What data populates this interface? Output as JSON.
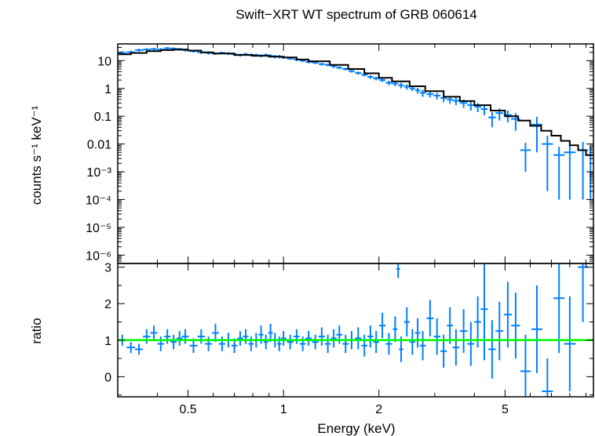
{
  "chart_data": {
    "type": "scatter",
    "title": "Swift−XRT WT spectrum of GRB 060614",
    "xlabel": "Energy (keV)",
    "xscale": "log",
    "xlim": [
      0.3,
      9.5
    ],
    "xticks": [
      {
        "value": 0.5,
        "label": "0.5"
      },
      {
        "value": 1,
        "label": "1"
      },
      {
        "value": 2,
        "label": "2"
      },
      {
        "value": 5,
        "label": "5"
      }
    ],
    "panels": [
      {
        "name": "spectrum",
        "ylabel": "counts s⁻¹ keV⁻¹",
        "yscale": "log",
        "ylim": [
          5e-07,
          40
        ],
        "yticks": [
          {
            "value": 10,
            "label": "10"
          },
          {
            "value": 1,
            "label": "1"
          },
          {
            "value": 0.1,
            "label": "0.1"
          },
          {
            "value": 0.01,
            "label": "0.01"
          },
          {
            "value": 0.001,
            "label": "10⁻³"
          },
          {
            "value": 0.0001,
            "label": "10⁻⁴"
          },
          {
            "value": 1e-05,
            "label": "10⁻⁵"
          },
          {
            "value": 1e-06,
            "label": "10⁻⁶"
          }
        ],
        "data": [
          [
            0.31,
            19,
            3
          ],
          [
            0.33,
            20,
            3
          ],
          [
            0.35,
            24,
            3
          ],
          [
            0.37,
            25,
            3
          ],
          [
            0.39,
            26,
            3
          ],
          [
            0.41,
            25,
            3
          ],
          [
            0.43,
            28,
            3
          ],
          [
            0.45,
            27,
            3
          ],
          [
            0.47,
            26,
            3
          ],
          [
            0.49,
            24,
            3
          ],
          [
            0.52,
            22,
            2.5
          ],
          [
            0.55,
            20,
            2.5
          ],
          [
            0.58,
            19,
            2.5
          ],
          [
            0.61,
            18,
            2
          ],
          [
            0.64,
            19,
            2
          ],
          [
            0.67,
            18,
            2
          ],
          [
            0.7,
            17,
            2
          ],
          [
            0.73,
            16,
            2
          ],
          [
            0.76,
            17,
            2
          ],
          [
            0.79,
            16,
            2
          ],
          [
            0.82,
            16,
            2
          ],
          [
            0.85,
            15,
            2
          ],
          [
            0.88,
            16,
            2
          ],
          [
            0.91,
            15,
            2
          ],
          [
            0.94,
            14,
            2
          ],
          [
            0.97,
            14,
            2
          ],
          [
            1.0,
            13,
            1.5
          ],
          [
            1.05,
            12,
            1.5
          ],
          [
            1.1,
            11,
            1.3
          ],
          [
            1.15,
            10,
            1.2
          ],
          [
            1.2,
            9,
            1.1
          ],
          [
            1.26,
            8.5,
            1
          ],
          [
            1.32,
            7.5,
            0.9
          ],
          [
            1.38,
            7,
            0.8
          ],
          [
            1.44,
            6.2,
            0.7
          ],
          [
            1.5,
            5.6,
            0.7
          ],
          [
            1.57,
            5,
            0.6
          ],
          [
            1.64,
            4.2,
            0.5
          ],
          [
            1.72,
            3.6,
            0.5
          ],
          [
            1.8,
            3.1,
            0.4
          ],
          [
            1.88,
            2.6,
            0.4
          ],
          [
            1.96,
            2.3,
            0.35
          ],
          [
            2.05,
            2.0,
            0.3
          ],
          [
            2.15,
            1.6,
            0.3
          ],
          [
            2.25,
            1.5,
            0.3
          ],
          [
            2.35,
            1.3,
            0.3
          ],
          [
            2.45,
            1.15,
            0.25
          ],
          [
            2.55,
            1.0,
            0.2
          ],
          [
            2.65,
            0.85,
            0.2
          ],
          [
            2.75,
            0.7,
            0.2
          ],
          [
            2.9,
            0.62,
            0.15
          ],
          [
            3.05,
            0.55,
            0.15
          ],
          [
            3.2,
            0.45,
            0.13
          ],
          [
            3.35,
            0.4,
            0.12
          ],
          [
            3.5,
            0.36,
            0.11
          ],
          [
            3.7,
            0.3,
            0.1
          ],
          [
            3.9,
            0.25,
            0.09
          ],
          [
            4.1,
            0.22,
            0.08
          ],
          [
            4.3,
            0.18,
            0.07
          ],
          [
            4.55,
            0.09,
            0.05
          ],
          [
            4.8,
            0.13,
            0.06
          ],
          [
            5.1,
            0.11,
            0.05
          ],
          [
            5.4,
            0.08,
            0.05
          ],
          [
            5.8,
            0.006,
            0.005
          ],
          [
            6.3,
            0.05,
            0.045
          ],
          [
            6.8,
            0.01,
            0.0098
          ],
          [
            7.4,
            0.004,
            0.0039
          ],
          [
            8.0,
            0.005,
            0.0049
          ],
          [
            8.8,
            0.006,
            0.0059
          ],
          [
            9.3,
            0.004,
            0.0039
          ]
        ],
        "model": {
          "name": "model",
          "color": "#000000",
          "x": [
            0.3,
            0.33,
            0.37,
            0.41,
            0.45,
            0.5,
            0.55,
            0.6,
            0.7,
            0.8,
            0.9,
            1.0,
            1.1,
            1.2,
            1.4,
            1.6,
            1.8,
            2.0,
            2.2,
            2.5,
            2.8,
            3.2,
            3.6,
            4.0,
            4.5,
            5.0,
            5.5,
            6.0,
            6.5,
            7.0,
            7.5,
            8.0,
            8.5,
            9.0,
            9.5
          ],
          "y": [
            17,
            19,
            22,
            24,
            25,
            23,
            20,
            18,
            16,
            15,
            14,
            13,
            11,
            9.5,
            7,
            5,
            3.5,
            2.4,
            1.8,
            1.2,
            0.8,
            0.5,
            0.35,
            0.25,
            0.16,
            0.1,
            0.07,
            0.045,
            0.03,
            0.02,
            0.013,
            0.009,
            0.006,
            0.004,
            0.0026
          ]
        }
      },
      {
        "name": "ratio",
        "ylabel": "ratio",
        "yscale": "linear",
        "ylim": [
          -0.55,
          3.1
        ],
        "yticks": [
          {
            "value": 0,
            "label": "0"
          },
          {
            "value": 1,
            "label": "1"
          },
          {
            "value": 2,
            "label": "2"
          },
          {
            "value": 3,
            "label": "3"
          }
        ],
        "data": [
          [
            0.31,
            1.0,
            0.15
          ],
          [
            0.33,
            0.8,
            0.15
          ],
          [
            0.35,
            0.75,
            0.15
          ],
          [
            0.37,
            1.1,
            0.2
          ],
          [
            0.39,
            1.2,
            0.2
          ],
          [
            0.41,
            0.9,
            0.2
          ],
          [
            0.43,
            1.1,
            0.2
          ],
          [
            0.45,
            0.95,
            0.2
          ],
          [
            0.47,
            1.05,
            0.2
          ],
          [
            0.49,
            1.1,
            0.2
          ],
          [
            0.52,
            0.85,
            0.2
          ],
          [
            0.55,
            1.1,
            0.2
          ],
          [
            0.58,
            0.9,
            0.2
          ],
          [
            0.61,
            1.2,
            0.25
          ],
          [
            0.64,
            0.9,
            0.2
          ],
          [
            0.67,
            1.0,
            0.2
          ],
          [
            0.7,
            0.85,
            0.2
          ],
          [
            0.73,
            1.05,
            0.2
          ],
          [
            0.76,
            1.1,
            0.2
          ],
          [
            0.79,
            0.9,
            0.2
          ],
          [
            0.82,
            1.0,
            0.2
          ],
          [
            0.85,
            1.15,
            0.25
          ],
          [
            0.88,
            0.95,
            0.2
          ],
          [
            0.91,
            1.2,
            0.25
          ],
          [
            0.94,
            1.0,
            0.2
          ],
          [
            0.97,
            0.9,
            0.2
          ],
          [
            1.0,
            1.05,
            0.2
          ],
          [
            1.05,
            0.95,
            0.2
          ],
          [
            1.1,
            1.1,
            0.2
          ],
          [
            1.15,
            0.9,
            0.2
          ],
          [
            1.2,
            1.05,
            0.2
          ],
          [
            1.26,
            0.95,
            0.2
          ],
          [
            1.32,
            1.1,
            0.25
          ],
          [
            1.38,
            0.9,
            0.25
          ],
          [
            1.44,
            1.05,
            0.25
          ],
          [
            1.5,
            1.15,
            0.25
          ],
          [
            1.57,
            0.9,
            0.25
          ],
          [
            1.64,
            1.0,
            0.25
          ],
          [
            1.72,
            1.05,
            0.3
          ],
          [
            1.8,
            0.85,
            0.3
          ],
          [
            1.88,
            1.1,
            0.3
          ],
          [
            1.96,
            0.95,
            0.3
          ],
          [
            2.05,
            1.4,
            0.35
          ],
          [
            2.15,
            0.9,
            0.3
          ],
          [
            2.25,
            1.3,
            0.35
          ],
          [
            2.3,
            2.95,
            0.25
          ],
          [
            2.35,
            0.75,
            0.35
          ],
          [
            2.45,
            1.5,
            0.4
          ],
          [
            2.55,
            0.95,
            0.35
          ],
          [
            2.65,
            1.2,
            0.4
          ],
          [
            2.75,
            0.85,
            0.4
          ],
          [
            2.9,
            1.6,
            0.5
          ],
          [
            3.05,
            1.1,
            0.5
          ],
          [
            3.2,
            0.7,
            0.45
          ],
          [
            3.35,
            1.4,
            0.5
          ],
          [
            3.5,
            0.8,
            0.5
          ],
          [
            3.7,
            1.25,
            0.6
          ],
          [
            3.9,
            0.9,
            0.6
          ],
          [
            4.1,
            1.5,
            0.7
          ],
          [
            4.3,
            1.85,
            1.4
          ],
          [
            4.55,
            0.75,
            0.8
          ],
          [
            4.8,
            1.25,
            0.8
          ],
          [
            5.1,
            1.7,
            0.9
          ],
          [
            5.4,
            1.4,
            0.9
          ],
          [
            5.8,
            0.15,
            1.0
          ],
          [
            6.3,
            1.3,
            1.2
          ],
          [
            6.8,
            -0.4,
            0.9
          ],
          [
            7.4,
            2.15,
            1.5
          ],
          [
            8.0,
            0.9,
            1.3
          ],
          [
            8.8,
            3.0,
            1.5
          ]
        ],
        "reference": {
          "name": "unity",
          "y": 1,
          "color": "#00ff00"
        }
      }
    ],
    "point_color": "#0080ff",
    "grid": false,
    "legend": "none"
  }
}
